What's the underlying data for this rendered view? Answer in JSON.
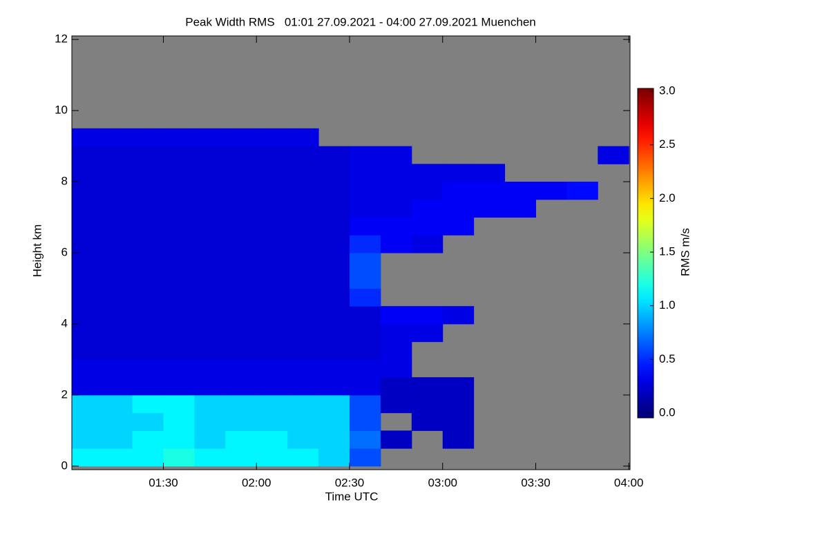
{
  "chart_data": {
    "type": "heatmap",
    "title": "Peak Width RMS   01:01 27.09.2021 - 04:00 27.09.2021 Muenchen",
    "x_label": "Time UTC",
    "y_label": "Height km",
    "colorbar_label": "RMS m/s",
    "colormap": "jet",
    "missing_color": "#808080",
    "xlim": [
      60.5,
      240.4
    ],
    "xticks": [
      {
        "value": 90,
        "label": "01:30"
      },
      {
        "value": 120,
        "label": "02:00"
      },
      {
        "value": 150,
        "label": "02:30"
      },
      {
        "value": 180,
        "label": "03:00"
      },
      {
        "value": 210,
        "label": "03:30"
      },
      {
        "value": 240,
        "label": "04:00"
      }
    ],
    "ylim": [
      -0.1,
      12.1
    ],
    "yticks": [
      0,
      2,
      4,
      6,
      8,
      10,
      12
    ],
    "zlim": [
      0,
      3
    ],
    "zticks": [
      {
        "value": 0,
        "label": "0.0"
      },
      {
        "value": 0.5,
        "label": "0.5"
      },
      {
        "value": 1,
        "label": "1.0"
      },
      {
        "value": 1.5,
        "label": "1.5"
      },
      {
        "value": 2,
        "label": "2.0"
      },
      {
        "value": 2.5,
        "label": "2.5"
      },
      {
        "value": 3,
        "label": "3.0"
      }
    ],
    "x": [
      65,
      75,
      85,
      95,
      105,
      115,
      125,
      135,
      145,
      155,
      165,
      175,
      185,
      195,
      205,
      215,
      225,
      235
    ],
    "y": [
      0.25,
      0.75,
      1.25,
      1.75,
      2.25,
      2.75,
      3.25,
      3.75,
      4.25,
      4.75,
      5.25,
      5.75,
      6.25,
      6.75,
      7.25,
      7.75,
      8.25,
      8.75,
      9.25,
      9.75,
      10.25,
      10.75,
      11.25,
      11.75
    ],
    "z": [
      [
        1.1,
        1.1,
        1.1,
        1.2,
        1.1,
        1.1,
        1.1,
        1.1,
        1.0,
        0.6,
        null,
        null,
        null,
        null,
        null,
        null,
        null,
        null
      ],
      [
        1.0,
        1.0,
        1.1,
        1.1,
        1.0,
        1.1,
        1.1,
        1.0,
        1.0,
        0.7,
        0.2,
        null,
        0.2,
        null,
        null,
        null,
        null,
        null
      ],
      [
        1.0,
        1.0,
        1.0,
        1.1,
        1.0,
        1.0,
        1.0,
        1.0,
        1.0,
        0.6,
        null,
        0.2,
        0.2,
        null,
        null,
        null,
        null,
        null
      ],
      [
        1.0,
        1.0,
        1.1,
        1.1,
        1.0,
        1.0,
        1.0,
        1.0,
        1.0,
        0.6,
        0.2,
        0.2,
        0.2,
        null,
        null,
        null,
        null,
        null
      ],
      [
        0.3,
        0.3,
        0.3,
        0.3,
        0.3,
        0.3,
        0.3,
        0.3,
        0.3,
        0.3,
        0.2,
        0.2,
        0.2,
        null,
        null,
        null,
        null,
        null
      ],
      [
        0.3,
        0.3,
        0.3,
        0.3,
        0.3,
        0.3,
        0.3,
        0.3,
        0.3,
        0.3,
        0.3,
        null,
        null,
        null,
        null,
        null,
        null,
        null
      ],
      [
        0.25,
        0.25,
        0.25,
        0.25,
        0.25,
        0.25,
        0.25,
        0.25,
        0.25,
        0.25,
        0.3,
        null,
        null,
        null,
        null,
        null,
        null,
        null
      ],
      [
        0.25,
        0.25,
        0.25,
        0.25,
        0.25,
        0.25,
        0.25,
        0.25,
        0.25,
        0.25,
        0.3,
        0.3,
        null,
        null,
        null,
        null,
        null,
        null
      ],
      [
        0.25,
        0.25,
        0.25,
        0.25,
        0.25,
        0.25,
        0.25,
        0.25,
        0.25,
        0.25,
        0.35,
        0.35,
        0.3,
        null,
        null,
        null,
        null,
        null
      ],
      [
        0.25,
        0.25,
        0.25,
        0.25,
        0.25,
        0.25,
        0.25,
        0.25,
        0.25,
        0.5,
        null,
        null,
        null,
        null,
        null,
        null,
        null,
        null
      ],
      [
        0.25,
        0.25,
        0.25,
        0.25,
        0.25,
        0.25,
        0.25,
        0.25,
        0.25,
        0.6,
        null,
        null,
        null,
        null,
        null,
        null,
        null,
        null
      ],
      [
        0.25,
        0.25,
        0.25,
        0.25,
        0.25,
        0.25,
        0.25,
        0.25,
        0.25,
        0.6,
        null,
        null,
        null,
        null,
        null,
        null,
        null,
        null
      ],
      [
        0.25,
        0.25,
        0.25,
        0.25,
        0.25,
        0.25,
        0.25,
        0.25,
        0.25,
        0.5,
        0.35,
        0.3,
        null,
        null,
        null,
        null,
        null,
        null
      ],
      [
        0.25,
        0.25,
        0.25,
        0.25,
        0.25,
        0.25,
        0.25,
        0.25,
        0.25,
        0.35,
        0.35,
        0.35,
        0.35,
        null,
        null,
        null,
        null,
        null
      ],
      [
        0.25,
        0.25,
        0.25,
        0.25,
        0.25,
        0.25,
        0.25,
        0.25,
        0.25,
        0.3,
        0.3,
        0.35,
        0.35,
        0.35,
        0.35,
        null,
        null,
        null
      ],
      [
        0.25,
        0.25,
        0.25,
        0.25,
        0.25,
        0.25,
        0.25,
        0.25,
        0.25,
        0.3,
        0.3,
        0.3,
        0.35,
        0.35,
        0.35,
        0.35,
        0.4,
        null
      ],
      [
        0.25,
        0.25,
        0.25,
        0.25,
        0.25,
        0.25,
        0.25,
        0.25,
        0.25,
        0.3,
        0.3,
        0.3,
        0.3,
        0.3,
        null,
        null,
        null,
        null
      ],
      [
        0.25,
        0.25,
        0.25,
        0.25,
        0.25,
        0.25,
        0.25,
        0.25,
        0.25,
        0.3,
        0.3,
        null,
        null,
        null,
        null,
        null,
        null,
        0.3
      ],
      [
        0.3,
        0.3,
        0.3,
        0.3,
        0.3,
        0.3,
        0.3,
        0.3,
        null,
        null,
        null,
        null,
        null,
        null,
        null,
        null,
        null,
        null
      ],
      [
        null,
        null,
        null,
        null,
        null,
        null,
        null,
        null,
        null,
        null,
        null,
        null,
        null,
        null,
        null,
        null,
        null,
        null
      ],
      [
        null,
        null,
        null,
        null,
        null,
        null,
        null,
        null,
        null,
        null,
        null,
        null,
        null,
        null,
        null,
        null,
        null,
        null
      ],
      [
        null,
        null,
        null,
        null,
        null,
        null,
        null,
        null,
        null,
        null,
        null,
        null,
        null,
        null,
        null,
        null,
        null,
        null
      ],
      [
        null,
        null,
        null,
        null,
        null,
        null,
        null,
        null,
        null,
        null,
        null,
        null,
        null,
        null,
        null,
        null,
        null,
        null
      ],
      [
        null,
        null,
        null,
        null,
        null,
        null,
        null,
        null,
        null,
        null,
        null,
        null,
        null,
        null,
        null,
        null,
        null,
        null
      ]
    ]
  }
}
